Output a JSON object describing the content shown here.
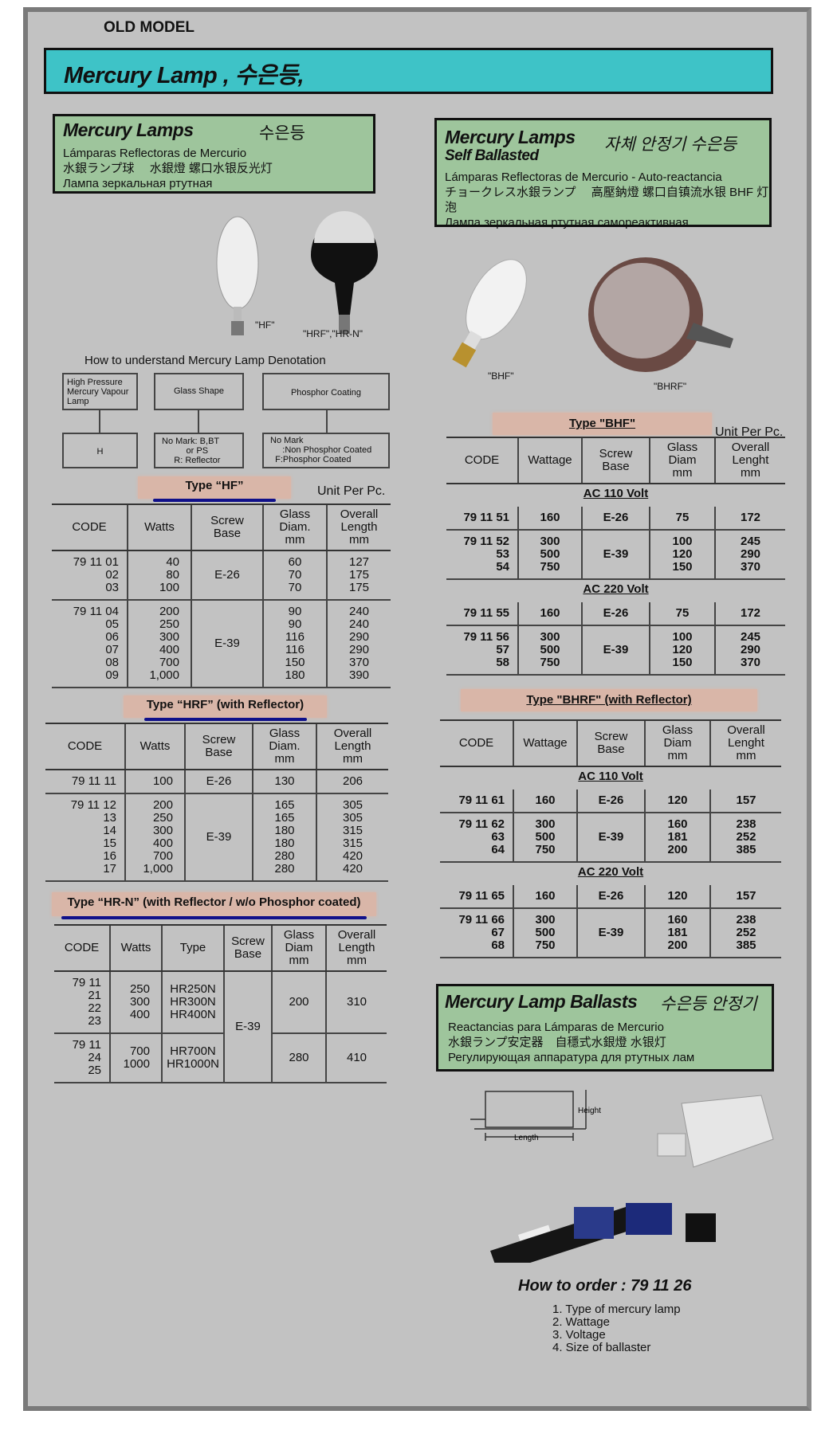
{
  "header": {
    "old_model": "OLD MODEL",
    "banner_title": "Mercury Lamp  , 수은등,"
  },
  "colors": {
    "banner": "#3ec3c7",
    "green_box": "#9ec59c",
    "type_pill": "#d9b6a8",
    "underline": "#10108a",
    "background": "#c2c2c2"
  },
  "left_box": {
    "title": "Mercury Lamps",
    "korean": "수은등",
    "lines": [
      "Lámparas Reflectoras de Mercurio",
      "水銀ランプ球　 水銀燈  螺口水银反光灯",
      "Лампа зеркальная ртутная"
    ]
  },
  "right_box": {
    "title": "Mercury Lamps",
    "subtitle": "Self Ballasted",
    "korean": "자체 안정기 수은등",
    "lines": [
      "Lámparas Reflectoras de Mercurio - Auto-reactancia",
      "チョークレス水銀ランプ　 高壓鈉燈  螺口自镇流水银 BHF 灯泡",
      "Лампа зеркальная ртутная самореактивная"
    ]
  },
  "lamp_labels": {
    "hf": "\"HF\"",
    "hrf": "\"HRF\",\"HR-N\"",
    "bhf": "\"BHF\"",
    "bhrf": "\"BHRF\""
  },
  "denotation": {
    "title": "How to understand Mercury Lamp Denotation",
    "top": [
      "High Pressure\nMercury Vapour\nLamp",
      "Glass Shape",
      "Phosphor Coating"
    ],
    "bottom": [
      "H",
      "No Mark: B,BT\n          or PS\n     R: Reflector",
      "No Mark\n     :Non Phosphor Coated\n  F:Phosphor Coated"
    ]
  },
  "unit_label": "Unit Per Pc.",
  "tables": {
    "hf": {
      "title": "Type “HF”",
      "headers": [
        "CODE",
        "Watts",
        "Screw\nBase",
        "Glass\nDiam.\nmm",
        "Overall\nLength\nmm"
      ],
      "groups": [
        {
          "rows": [
            [
              "79 11 01\n02\n03",
              "40\n80\n100",
              "E-26",
              "60\n70\n70",
              "127\n175\n175"
            ]
          ]
        },
        {
          "rows": [
            [
              "79 11 04\n05\n06\n07\n08\n09",
              "200\n250\n300\n400\n700\n1,000",
              "E-39",
              "90\n90\n116\n116\n150\n180",
              "240\n240\n290\n290\n370\n390"
            ]
          ]
        }
      ]
    },
    "hrf": {
      "title": "Type “HRF” (with Reflector)",
      "headers": [
        "CODE",
        "Watts",
        "Screw\nBase",
        "Glass\nDiam.\nmm",
        "Overall\nLength\nmm"
      ],
      "groups": [
        {
          "rows": [
            [
              "79 11 11",
              "100",
              "E-26",
              "130",
              "206"
            ]
          ]
        },
        {
          "rows": [
            [
              "79 11 12\n13\n14\n15\n16\n17",
              "200\n250\n300\n400\n700\n1,000",
              "E-39",
              "165\n165\n180\n180\n280\n280",
              "305\n305\n315\n315\n420\n420"
            ]
          ]
        }
      ]
    },
    "hrn": {
      "title": "Type “HR-N” (with Reflector / w/o Phosphor coated)",
      "headers": [
        "CODE",
        "Watts",
        "Type",
        "Screw\nBase",
        "Glass\nDiam\nmm",
        "Overall\nLength\nmm"
      ],
      "groups": [
        {
          "rows": [
            [
              "79 11 21\n22\n23",
              "250\n300\n400",
              "HR250N\nHR300N\nHR400N",
              {
                "text": "E-39",
                "rowspan": 2
              },
              "200",
              "310"
            ]
          ]
        },
        {
          "rows": [
            [
              "79 11 24\n25",
              "700\n1000",
              "HR700N\nHR1000N",
              null,
              "280",
              "410"
            ]
          ]
        }
      ]
    },
    "bhf": {
      "title": "Type \"BHF\"",
      "headers": [
        "CODE",
        "Wattage",
        "Screw\nBase",
        "Glass\nDiam\nmm",
        "Overall\nLenght\nmm"
      ],
      "groups": [
        {
          "label": "AC 110 Volt",
          "rows": [
            [
              "79 11 51",
              "160",
              "E-26",
              "75",
              "172"
            ],
            [
              "79 11 52\n53\n54",
              "300\n500\n750",
              "E-39",
              "100\n120\n150",
              "245\n290\n370"
            ]
          ]
        },
        {
          "label": "AC 220 Volt",
          "rows": [
            [
              "79 11 55",
              "160",
              "E-26",
              "75",
              "172"
            ],
            [
              "79 11 56\n57\n58",
              "300\n500\n750",
              "E-39",
              "100\n120\n150",
              "245\n290\n370"
            ]
          ]
        }
      ]
    },
    "bhrf": {
      "title": "Type \"BHRF\" (with Reflector)",
      "headers": [
        "CODE",
        "Wattage",
        "Screw\nBase",
        "Glass\nDiam\nmm",
        "Overall\nLenght\nmm"
      ],
      "groups": [
        {
          "label": "AC 110 Volt",
          "rows": [
            [
              "79 11 61",
              "160",
              "E-26",
              "120",
              "157"
            ],
            [
              "79 11 62\n63\n64",
              "300\n500\n750",
              "E-39",
              "160\n181\n200",
              "238\n252\n385"
            ]
          ]
        },
        {
          "label": "AC 220 Volt",
          "rows": [
            [
              "79 11 65",
              "160",
              "E-26",
              "120",
              "157"
            ],
            [
              "79 11 66\n67\n68",
              "300\n500\n750",
              "E-39",
              "160\n181\n200",
              "238\n252\n385"
            ]
          ]
        }
      ]
    }
  },
  "ballast_box": {
    "title": "Mercury Lamp Ballasts",
    "korean": "수은등 안정기",
    "lines": [
      "Reactancias para Lámparas de Mercurio",
      "水銀ランプ安定器　自穩式水銀燈  水银灯",
      "Регулирующая аппаратура для ртутных лам"
    ]
  },
  "diagram_labels": {
    "height": "Height",
    "length": "Length"
  },
  "order": {
    "title": "How to order :  79 11 26",
    "items": [
      "1. Type of mercury lamp",
      "2. Wattage",
      "3. Voltage",
      "4. Size of ballaster"
    ]
  }
}
